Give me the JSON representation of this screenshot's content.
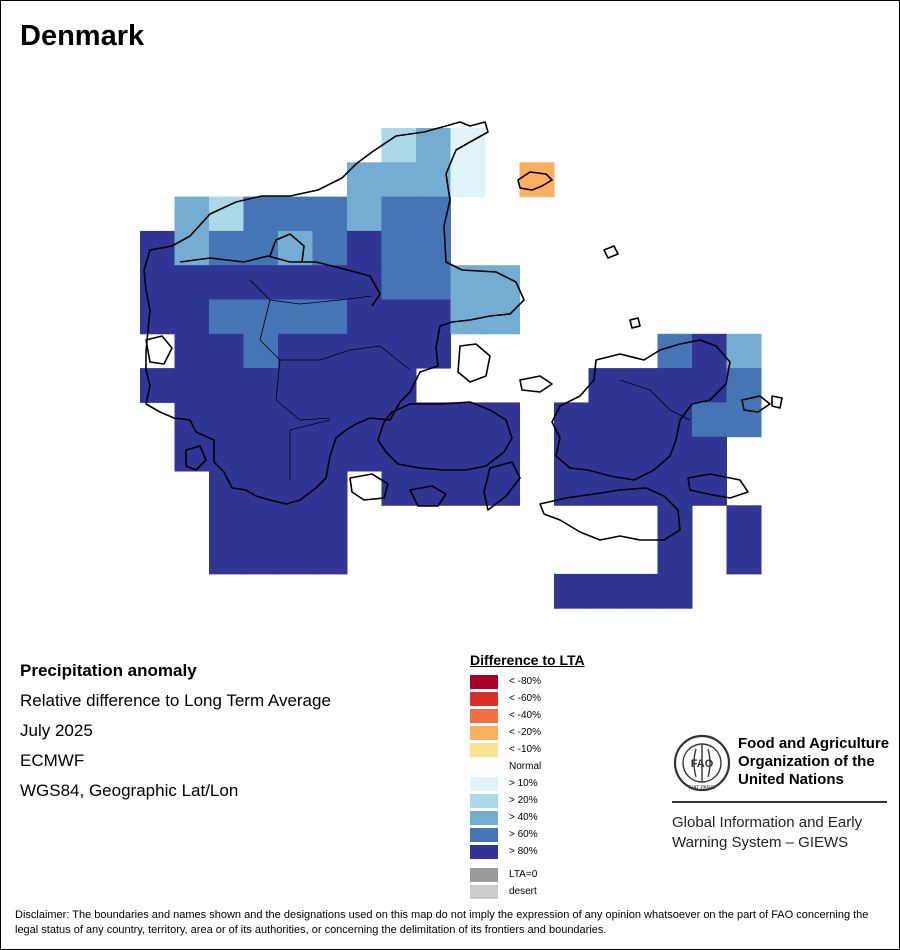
{
  "title": "Denmark",
  "info": {
    "heading": "Precipitation anomaly",
    "subtitle": "Relative difference to Long Term Average",
    "period": "July 2025",
    "source": "ECMWF",
    "projection": "WGS84, Geographic Lat/Lon"
  },
  "legend": {
    "title": "Difference to LTA",
    "items": [
      {
        "label": "< -80%",
        "color": "#a50026"
      },
      {
        "label": "< -60%",
        "color": "#d73027"
      },
      {
        "label": "< -40%",
        "color": "#f46d43"
      },
      {
        "label": "< -20%",
        "color": "#fdae61"
      },
      {
        "label": "< -10%",
        "color": "#fee090"
      },
      {
        "label": "Normal",
        "color": "#ffffff"
      },
      {
        "label": "> 10%",
        "color": "#e0f3f8"
      },
      {
        "label": "> 20%",
        "color": "#abd9e9"
      },
      {
        "label": "> 40%",
        "color": "#74add1"
      },
      {
        "label": "> 60%",
        "color": "#4575b4"
      },
      {
        "label": "> 80%",
        "color": "#313695"
      }
    ],
    "extra": [
      {
        "label": "LTA=0",
        "color": "#999999"
      },
      {
        "label": "desert",
        "color": "#cccccc"
      }
    ]
  },
  "fao": {
    "org_line1": "Food and Agriculture",
    "org_line2": "Organization of the",
    "org_line3": "United Nations",
    "giews_line1": "Global Information and Early",
    "giews_line2": "Warning System – GIEWS",
    "emblem_text": "FAO",
    "emblem_motto": "FIAT PANIS"
  },
  "disclaimer": "Disclaimer: The boundaries and names shown and the designations used on this map do not imply the expression of any opinion whatsoever on the part of FAO concerning the legal status of any country, territory, area or of its authorities, or concerning the delimitation of its frontiers and boundaries.",
  "map_data": {
    "grid_origin": {
      "lon": 8.0,
      "lat": 57.75
    },
    "cell_deg": 0.5,
    "cells": [
      {
        "row": 0,
        "cols": [
          [
            7,
            7,
            "> 20%"
          ],
          [
            8,
            8,
            "> 40%"
          ],
          [
            9,
            9,
            "> 10%"
          ]
        ]
      },
      {
        "row": 1,
        "cols": [
          [
            6,
            8,
            "> 40%"
          ],
          [
            9,
            9,
            "> 10%"
          ],
          [
            11,
            11,
            "< -20%"
          ]
        ]
      },
      {
        "row": 2,
        "cols": [
          [
            1,
            1,
            "> 40%"
          ],
          [
            2,
            2,
            "> 20%"
          ],
          [
            3,
            5,
            "> 60%"
          ],
          [
            6,
            6,
            "> 40%"
          ],
          [
            7,
            8,
            "> 60%"
          ]
        ]
      },
      {
        "row": 3,
        "cols": [
          [
            0,
            0,
            "> 80%"
          ],
          [
            1,
            1,
            "> 40%"
          ],
          [
            2,
            3,
            "> 60%"
          ],
          [
            4,
            4,
            "> 40%"
          ],
          [
            5,
            5,
            "> 60%"
          ],
          [
            6,
            6,
            "> 80%"
          ],
          [
            7,
            8,
            "> 60%"
          ]
        ]
      },
      {
        "row": 4,
        "cols": [
          [
            0,
            6,
            "> 80%"
          ],
          [
            7,
            8,
            "> 60%"
          ],
          [
            9,
            10,
            "> 40%"
          ]
        ]
      },
      {
        "row": 5,
        "cols": [
          [
            0,
            1,
            "> 80%"
          ],
          [
            2,
            5,
            "> 60%"
          ],
          [
            6,
            8,
            "> 80%"
          ],
          [
            9,
            10,
            "> 40%"
          ]
        ]
      },
      {
        "row": 6,
        "cols": [
          [
            1,
            2,
            "> 80%"
          ],
          [
            3,
            3,
            "> 60%"
          ],
          [
            4,
            8,
            "> 80%"
          ],
          [
            15,
            15,
            "> 60%"
          ],
          [
            16,
            16,
            "> 80%"
          ],
          [
            17,
            17,
            "> 40%"
          ]
        ]
      },
      {
        "row": 7,
        "cols": [
          [
            0,
            7,
            "> 80%"
          ],
          [
            13,
            16,
            "> 80%"
          ],
          [
            17,
            17,
            "> 60%"
          ]
        ]
      },
      {
        "row": 8,
        "cols": [
          [
            1,
            10,
            "> 80%"
          ],
          [
            12,
            15,
            "> 80%"
          ],
          [
            16,
            17,
            "> 60%"
          ]
        ]
      },
      {
        "row": 9,
        "cols": [
          [
            1,
            5,
            "> 80%"
          ],
          [
            6,
            10,
            "> 80%"
          ],
          [
            12,
            16,
            "> 80%"
          ]
        ]
      },
      {
        "row": 10,
        "cols": [
          [
            2,
            5,
            "> 80%"
          ],
          [
            7,
            10,
            "> 80%"
          ],
          [
            12,
            16,
            "> 80%"
          ]
        ]
      },
      {
        "row": 11,
        "cols": [
          [
            2,
            5,
            "> 80%"
          ],
          [
            15,
            15,
            "> 80%"
          ],
          [
            17,
            17,
            "> 80%"
          ]
        ]
      },
      {
        "row": 12,
        "cols": [
          [
            2,
            5,
            "> 80%"
          ],
          [
            15,
            15,
            "> 80%"
          ],
          [
            17,
            17,
            "> 80%"
          ]
        ]
      },
      {
        "row": 13,
        "cols": [
          [
            12,
            15,
            "> 80%"
          ]
        ]
      }
    ]
  }
}
